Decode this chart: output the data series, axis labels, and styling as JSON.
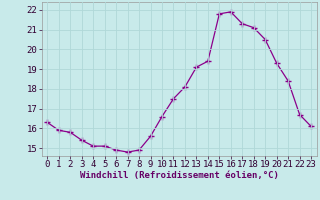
{
  "x": [
    0,
    1,
    2,
    3,
    4,
    5,
    6,
    7,
    8,
    9,
    10,
    11,
    12,
    13,
    14,
    15,
    16,
    17,
    18,
    19,
    20,
    21,
    22,
    23
  ],
  "y": [
    16.3,
    15.9,
    15.8,
    15.4,
    15.1,
    15.1,
    14.9,
    14.8,
    14.9,
    15.6,
    16.6,
    17.5,
    18.1,
    19.1,
    19.4,
    21.8,
    21.9,
    21.3,
    21.1,
    20.5,
    19.3,
    18.4,
    16.7,
    16.1
  ],
  "line_color": "#8b008b",
  "marker": "+",
  "marker_size": 4,
  "bg_color": "#c8eaea",
  "grid_color": "#b0d8d8",
  "ylabel_ticks": [
    15,
    16,
    17,
    18,
    19,
    20,
    21,
    22
  ],
  "ylim": [
    14.6,
    22.4
  ],
  "xlim": [
    -0.5,
    23.5
  ],
  "xlabel": "Windchill (Refroidissement éolien,°C)",
  "xlabel_fontsize": 6.5,
  "tick_fontsize": 6.5,
  "title": ""
}
